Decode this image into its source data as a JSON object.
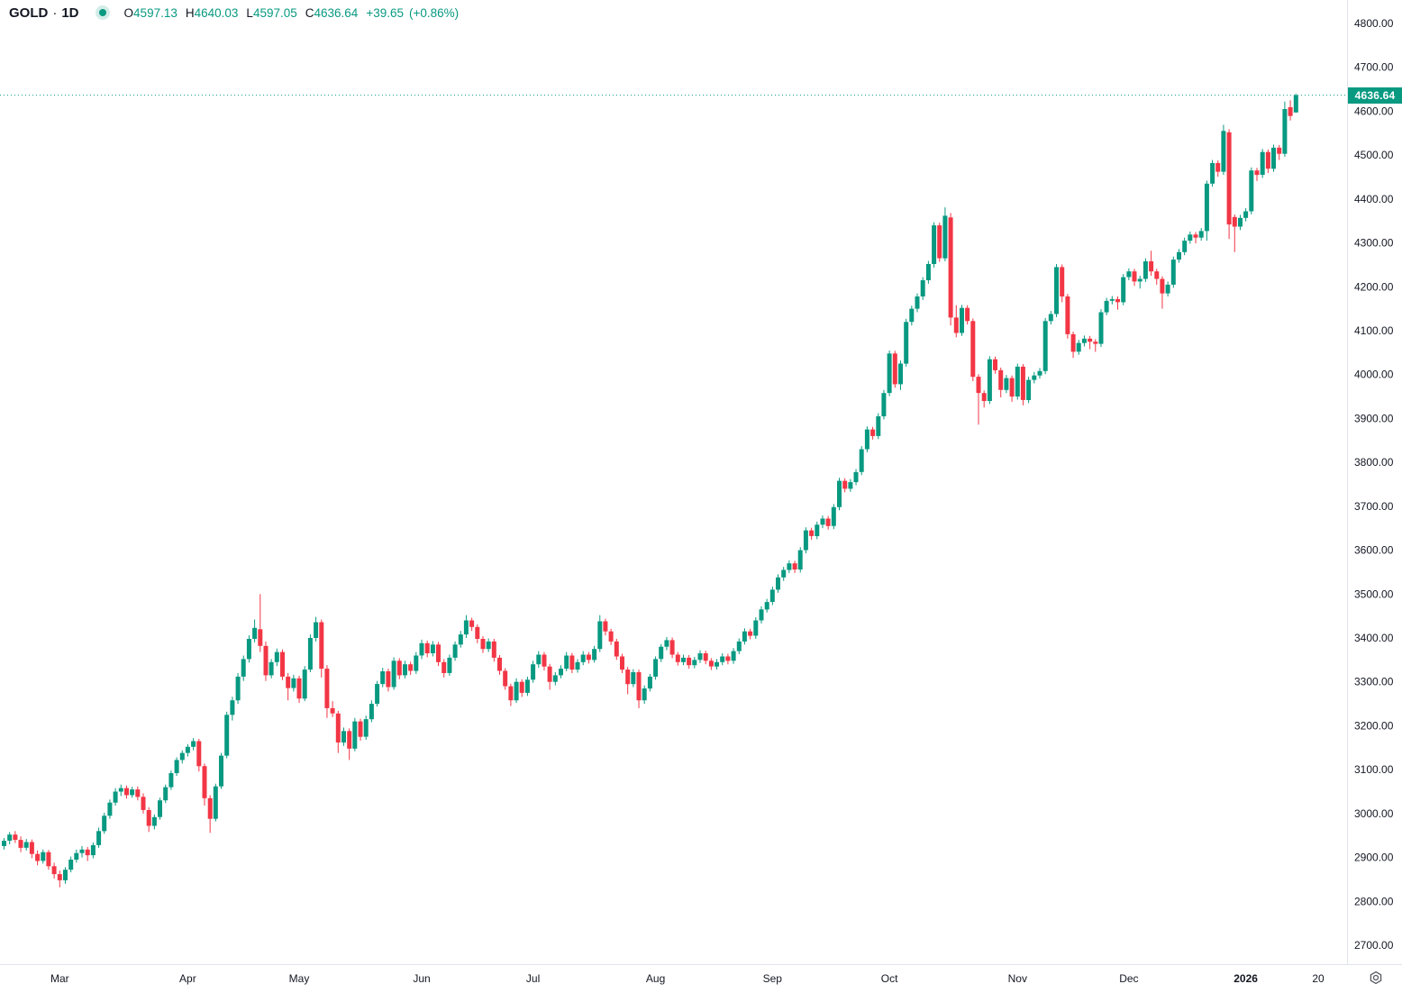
{
  "header": {
    "symbol": "GOLD",
    "separator": "·",
    "interval": "1D",
    "ohlc": {
      "o_label": "O",
      "o_value": "4597.13",
      "h_label": "H",
      "h_value": "4640.03",
      "l_label": "L",
      "l_value": "4597.05",
      "c_label": "C",
      "c_value": "4636.64",
      "change": "+39.65",
      "change_pct": "(+0.86%)"
    }
  },
  "colors": {
    "up": "#089981",
    "down": "#f23645",
    "axis_text": "#131722",
    "axis_border": "#e0e3eb",
    "badge_bg": "#089981",
    "badge_text": "#ffffff",
    "price_line": "#089981",
    "icon_gray": "#555961",
    "status_dot": "#089981"
  },
  "price_axis": {
    "min": 2700,
    "max": 4800,
    "step": 100,
    "labels": [
      "4800.00",
      "4700.00",
      "4600.00",
      "4500.00",
      "4400.00",
      "4300.00",
      "4200.00",
      "4100.00",
      "4000.00",
      "3900.00",
      "3800.00",
      "3700.00",
      "3600.00",
      "3500.00",
      "3400.00",
      "3300.00",
      "3200.00",
      "3100.00",
      "3000.00",
      "2900.00",
      "2800.00",
      "2700.00"
    ],
    "last_price_label": "4636.64"
  },
  "chart_data": {
    "type": "candlestick",
    "title": "GOLD 1D daily candlestick chart",
    "xlabel": "",
    "ylabel": "",
    "y_range": [
      2700,
      4800
    ],
    "y_tick_step": 100,
    "grid": false,
    "legend_position": "top-left",
    "last_price": 4636.64,
    "last_candle": {
      "open": 4597.13,
      "high": 4640.03,
      "low": 4597.05,
      "close": 4636.64,
      "change": 39.65,
      "change_pct": 0.86
    },
    "x_ticks": [
      {
        "label": "Mar",
        "index": 10,
        "bold": false
      },
      {
        "label": "Apr",
        "index": 33,
        "bold": false
      },
      {
        "label": "May",
        "index": 53,
        "bold": false
      },
      {
        "label": "Jun",
        "index": 75,
        "bold": false
      },
      {
        "label": "Jul",
        "index": 95,
        "bold": false
      },
      {
        "label": "Aug",
        "index": 117,
        "bold": false
      },
      {
        "label": "Sep",
        "index": 138,
        "bold": false
      },
      {
        "label": "Oct",
        "index": 159,
        "bold": false
      },
      {
        "label": "Nov",
        "index": 182,
        "bold": false
      },
      {
        "label": "Dec",
        "index": 202,
        "bold": false
      },
      {
        "label": "2026",
        "index": 223,
        "bold": true
      },
      {
        "label": "20",
        "index": 236,
        "bold": false
      }
    ],
    "candles": [
      [
        2926,
        2944,
        2918,
        2938
      ],
      [
        2938,
        2958,
        2930,
        2952
      ],
      [
        2952,
        2960,
        2933,
        2940
      ],
      [
        2940,
        2948,
        2912,
        2922
      ],
      [
        2922,
        2942,
        2916,
        2935
      ],
      [
        2935,
        2941,
        2898,
        2908
      ],
      [
        2908,
        2916,
        2882,
        2892
      ],
      [
        2892,
        2918,
        2886,
        2912
      ],
      [
        2912,
        2917,
        2872,
        2880
      ],
      [
        2880,
        2888,
        2852,
        2862
      ],
      [
        2862,
        2870,
        2832,
        2848
      ],
      [
        2848,
        2878,
        2840,
        2872
      ],
      [
        2872,
        2902,
        2866,
        2895
      ],
      [
        2895,
        2918,
        2888,
        2910
      ],
      [
        2910,
        2926,
        2900,
        2918
      ],
      [
        2918,
        2924,
        2892,
        2905
      ],
      [
        2905,
        2934,
        2898,
        2928
      ],
      [
        2928,
        2968,
        2922,
        2960
      ],
      [
        2960,
        3002,
        2954,
        2995
      ],
      [
        2995,
        3032,
        2988,
        3025
      ],
      [
        3025,
        3058,
        3018,
        3050
      ],
      [
        3050,
        3066,
        3040,
        3058
      ],
      [
        3058,
        3064,
        3034,
        3042
      ],
      [
        3042,
        3061,
        3036,
        3055
      ],
      [
        3055,
        3062,
        3030,
        3038
      ],
      [
        3038,
        3046,
        3000,
        3008
      ],
      [
        3008,
        3014,
        2958,
        2972
      ],
      [
        2972,
        2998,
        2964,
        2992
      ],
      [
        2992,
        3036,
        2986,
        3030
      ],
      [
        3030,
        3066,
        3024,
        3060
      ],
      [
        3060,
        3098,
        3054,
        3092
      ],
      [
        3092,
        3128,
        3086,
        3122
      ],
      [
        3122,
        3144,
        3114,
        3138
      ],
      [
        3138,
        3158,
        3130,
        3152
      ],
      [
        3152,
        3172,
        3144,
        3165
      ],
      [
        3165,
        3170,
        3096,
        3108
      ],
      [
        3108,
        3114,
        3018,
        3035
      ],
      [
        3035,
        3042,
        2956,
        2988
      ],
      [
        2988,
        3068,
        2982,
        3062
      ],
      [
        3062,
        3138,
        3056,
        3132
      ],
      [
        3132,
        3232,
        3126,
        3225
      ],
      [
        3225,
        3266,
        3212,
        3258
      ],
      [
        3258,
        3320,
        3250,
        3312
      ],
      [
        3312,
        3360,
        3302,
        3352
      ],
      [
        3352,
        3406,
        3344,
        3398
      ],
      [
        3398,
        3442,
        3390,
        3423
      ],
      [
        3420,
        3500,
        3368,
        3382
      ],
      [
        3382,
        3392,
        3302,
        3315
      ],
      [
        3315,
        3352,
        3308,
        3345
      ],
      [
        3345,
        3376,
        3336,
        3368
      ],
      [
        3368,
        3374,
        3304,
        3312
      ],
      [
        3312,
        3320,
        3258,
        3286
      ],
      [
        3286,
        3316,
        3278,
        3308
      ],
      [
        3308,
        3314,
        3252,
        3262
      ],
      [
        3262,
        3336,
        3256,
        3328
      ],
      [
        3328,
        3408,
        3322,
        3400
      ],
      [
        3400,
        3448,
        3392,
        3436
      ],
      [
        3436,
        3442,
        3310,
        3330
      ],
      [
        3330,
        3338,
        3218,
        3240
      ],
      [
        3240,
        3256,
        3220,
        3228
      ],
      [
        3228,
        3234,
        3138,
        3162
      ],
      [
        3162,
        3196,
        3154,
        3188
      ],
      [
        3188,
        3194,
        3122,
        3148
      ],
      [
        3148,
        3218,
        3142,
        3210
      ],
      [
        3210,
        3216,
        3166,
        3175
      ],
      [
        3175,
        3223,
        3168,
        3215
      ],
      [
        3215,
        3258,
        3208,
        3250
      ],
      [
        3250,
        3302,
        3244,
        3295
      ],
      [
        3295,
        3332,
        3288,
        3324
      ],
      [
        3324,
        3330,
        3278,
        3288
      ],
      [
        3288,
        3356,
        3282,
        3348
      ],
      [
        3348,
        3354,
        3306,
        3315
      ],
      [
        3315,
        3348,
        3308,
        3340
      ],
      [
        3340,
        3346,
        3316,
        3325
      ],
      [
        3325,
        3368,
        3318,
        3360
      ],
      [
        3360,
        3396,
        3352,
        3388
      ],
      [
        3388,
        3394,
        3356,
        3365
      ],
      [
        3365,
        3393,
        3358,
        3385
      ],
      [
        3385,
        3391,
        3336,
        3345
      ],
      [
        3345,
        3352,
        3310,
        3320
      ],
      [
        3320,
        3362,
        3314,
        3355
      ],
      [
        3355,
        3392,
        3348,
        3385
      ],
      [
        3385,
        3416,
        3378,
        3408
      ],
      [
        3408,
        3452,
        3400,
        3440
      ],
      [
        3440,
        3446,
        3416,
        3425
      ],
      [
        3425,
        3431,
        3388,
        3398
      ],
      [
        3398,
        3404,
        3366,
        3375
      ],
      [
        3375,
        3399,
        3368,
        3392
      ],
      [
        3392,
        3398,
        3346,
        3355
      ],
      [
        3355,
        3361,
        3316,
        3325
      ],
      [
        3325,
        3331,
        3282,
        3290
      ],
      [
        3290,
        3296,
        3245,
        3258
      ],
      [
        3258,
        3308,
        3252,
        3300
      ],
      [
        3300,
        3306,
        3266,
        3275
      ],
      [
        3275,
        3312,
        3268,
        3305
      ],
      [
        3305,
        3348,
        3298,
        3340
      ],
      [
        3340,
        3370,
        3332,
        3362
      ],
      [
        3362,
        3368,
        3326,
        3335
      ],
      [
        3335,
        3341,
        3282,
        3300
      ],
      [
        3300,
        3322,
        3292,
        3315
      ],
      [
        3315,
        3338,
        3308,
        3330
      ],
      [
        3330,
        3368,
        3324,
        3360
      ],
      [
        3360,
        3366,
        3320,
        3328
      ],
      [
        3328,
        3352,
        3321,
        3345
      ],
      [
        3345,
        3370,
        3338,
        3362
      ],
      [
        3362,
        3368,
        3342,
        3350
      ],
      [
        3350,
        3382,
        3344,
        3375
      ],
      [
        3375,
        3452,
        3368,
        3438
      ],
      [
        3438,
        3444,
        3406,
        3415
      ],
      [
        3415,
        3421,
        3384,
        3392
      ],
      [
        3392,
        3398,
        3350,
        3358
      ],
      [
        3358,
        3364,
        3320,
        3328
      ],
      [
        3328,
        3334,
        3272,
        3295
      ],
      [
        3295,
        3329,
        3288,
        3322
      ],
      [
        3322,
        3328,
        3240,
        3258
      ],
      [
        3258,
        3292,
        3250,
        3285
      ],
      [
        3285,
        3318,
        3278,
        3312
      ],
      [
        3312,
        3358,
        3305,
        3352
      ],
      [
        3352,
        3386,
        3345,
        3380
      ],
      [
        3380,
        3402,
        3372,
        3395
      ],
      [
        3395,
        3401,
        3354,
        3362
      ],
      [
        3362,
        3368,
        3337,
        3345
      ],
      [
        3345,
        3362,
        3338,
        3355
      ],
      [
        3355,
        3361,
        3330,
        3338
      ],
      [
        3338,
        3357,
        3331,
        3350
      ],
      [
        3350,
        3372,
        3343,
        3365
      ],
      [
        3365,
        3371,
        3340,
        3348
      ],
      [
        3348,
        3354,
        3327,
        3335
      ],
      [
        3335,
        3352,
        3328,
        3345
      ],
      [
        3345,
        3365,
        3338,
        3358
      ],
      [
        3358,
        3364,
        3340,
        3348
      ],
      [
        3348,
        3377,
        3341,
        3370
      ],
      [
        3370,
        3399,
        3363,
        3392
      ],
      [
        3392,
        3422,
        3385,
        3415
      ],
      [
        3415,
        3421,
        3397,
        3405
      ],
      [
        3405,
        3447,
        3398,
        3440
      ],
      [
        3440,
        3472,
        3433,
        3465
      ],
      [
        3465,
        3489,
        3458,
        3482
      ],
      [
        3482,
        3517,
        3475,
        3510
      ],
      [
        3510,
        3545,
        3503,
        3538
      ],
      [
        3538,
        3562,
        3530,
        3555
      ],
      [
        3555,
        3577,
        3548,
        3570
      ],
      [
        3570,
        3576,
        3548,
        3556
      ],
      [
        3556,
        3607,
        3549,
        3600
      ],
      [
        3600,
        3652,
        3593,
        3645
      ],
      [
        3645,
        3651,
        3624,
        3632
      ],
      [
        3632,
        3665,
        3625,
        3658
      ],
      [
        3658,
        3679,
        3650,
        3672
      ],
      [
        3672,
        3678,
        3647,
        3655
      ],
      [
        3655,
        3705,
        3648,
        3698
      ],
      [
        3698,
        3765,
        3691,
        3758
      ],
      [
        3758,
        3764,
        3732,
        3740
      ],
      [
        3740,
        3762,
        3733,
        3755
      ],
      [
        3755,
        3785,
        3748,
        3778
      ],
      [
        3778,
        3837,
        3771,
        3830
      ],
      [
        3830,
        3882,
        3823,
        3875
      ],
      [
        3875,
        3881,
        3852,
        3860
      ],
      [
        3860,
        3912,
        3853,
        3905
      ],
      [
        3905,
        3965,
        3898,
        3958
      ],
      [
        3958,
        4055,
        3951,
        4048
      ],
      [
        4048,
        4054,
        3970,
        3978
      ],
      [
        3978,
        4032,
        3965,
        4025
      ],
      [
        4025,
        4127,
        4018,
        4120
      ],
      [
        4120,
        4157,
        4112,
        4150
      ],
      [
        4150,
        4185,
        4142,
        4178
      ],
      [
        4178,
        4222,
        4170,
        4215
      ],
      [
        4215,
        4259,
        4207,
        4252
      ],
      [
        4252,
        4347,
        4244,
        4340
      ],
      [
        4340,
        4346,
        4257,
        4265
      ],
      [
        4265,
        4381,
        4258,
        4362
      ],
      [
        4358,
        4368,
        4112,
        4130
      ],
      [
        4130,
        4158,
        4085,
        4095
      ],
      [
        4095,
        4159,
        4088,
        4152
      ],
      [
        4152,
        4158,
        4114,
        4122
      ],
      [
        4122,
        4128,
        3985,
        3995
      ],
      [
        3995,
        4001,
        3886,
        3958
      ],
      [
        3958,
        3964,
        3925,
        3940
      ],
      [
        3940,
        4042,
        3933,
        4035
      ],
      [
        4035,
        4041,
        4002,
        4010
      ],
      [
        4010,
        4016,
        3948,
        3965
      ],
      [
        3965,
        3999,
        3958,
        3992
      ],
      [
        3992,
        3998,
        3938,
        3950
      ],
      [
        3950,
        4025,
        3943,
        4018
      ],
      [
        4018,
        4024,
        3930,
        3942
      ],
      [
        3942,
        3995,
        3935,
        3988
      ],
      [
        3988,
        4006,
        3980,
        3998
      ],
      [
        3998,
        4015,
        3991,
        4008
      ],
      [
        4008,
        4129,
        4001,
        4122
      ],
      [
        4122,
        4145,
        4114,
        4138
      ],
      [
        4138,
        4252,
        4131,
        4245
      ],
      [
        4245,
        4251,
        4165,
        4178
      ],
      [
        4178,
        4184,
        4082,
        4092
      ],
      [
        4092,
        4098,
        4038,
        4052
      ],
      [
        4052,
        4079,
        4045,
        4072
      ],
      [
        4072,
        4089,
        4064,
        4082
      ],
      [
        4082,
        4088,
        4058,
        4075
      ],
      [
        4075,
        4081,
        4052,
        4070
      ],
      [
        4070,
        4149,
        4063,
        4142
      ],
      [
        4142,
        4175,
        4135,
        4168
      ],
      [
        4168,
        4179,
        4160,
        4172
      ],
      [
        4172,
        4178,
        4148,
        4165
      ],
      [
        4165,
        4229,
        4158,
        4222
      ],
      [
        4222,
        4242,
        4215,
        4235
      ],
      [
        4235,
        4241,
        4202,
        4212
      ],
      [
        4212,
        4225,
        4196,
        4218
      ],
      [
        4218,
        4265,
        4211,
        4258
      ],
      [
        4258,
        4282,
        4225,
        4235
      ],
      [
        4235,
        4241,
        4205,
        4218
      ],
      [
        4218,
        4224,
        4150,
        4185
      ],
      [
        4185,
        4212,
        4178,
        4205
      ],
      [
        4205,
        4269,
        4198,
        4262
      ],
      [
        4262,
        4286,
        4255,
        4279
      ],
      [
        4279,
        4312,
        4272,
        4305
      ],
      [
        4305,
        4326,
        4298,
        4319
      ],
      [
        4319,
        4325,
        4299,
        4312
      ],
      [
        4312,
        4334,
        4305,
        4327
      ],
      [
        4327,
        4442,
        4305,
        4435
      ],
      [
        4435,
        4489,
        4428,
        4482
      ],
      [
        4482,
        4488,
        4451,
        4462
      ],
      [
        4462,
        4569,
        4455,
        4555
      ],
      [
        4552,
        4559,
        4309,
        4342
      ],
      [
        4359,
        4365,
        4279,
        4337
      ],
      [
        4337,
        4364,
        4329,
        4357
      ],
      [
        4357,
        4379,
        4349,
        4372
      ],
      [
        4372,
        4472,
        4365,
        4465
      ],
      [
        4465,
        4471,
        4441,
        4455
      ],
      [
        4455,
        4514,
        4448,
        4507
      ],
      [
        4507,
        4513,
        4459,
        4469
      ],
      [
        4469,
        4524,
        4462,
        4517
      ],
      [
        4517,
        4523,
        4489,
        4503
      ],
      [
        4503,
        4622,
        4496,
        4605
      ],
      [
        4609,
        4625,
        4579,
        4589
      ],
      [
        4597.13,
        4640.03,
        4597.05,
        4636.64
      ]
    ]
  }
}
